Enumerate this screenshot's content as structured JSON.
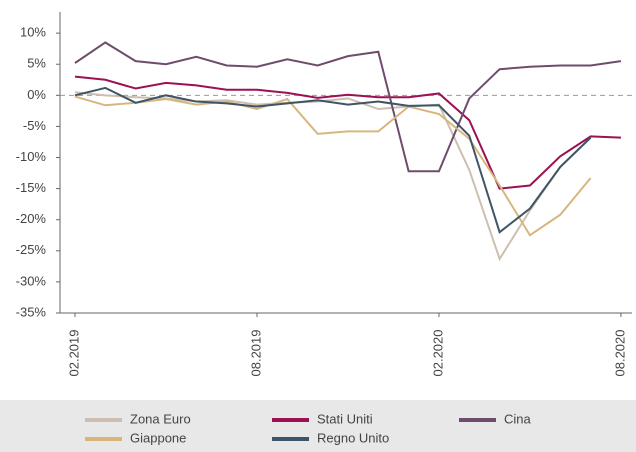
{
  "chart_data": {
    "type": "line",
    "categories": [
      "02.2019",
      null,
      null,
      null,
      null,
      null,
      "08.2019",
      null,
      null,
      null,
      null,
      null,
      "02.2020",
      null,
      null,
      null,
      null,
      null,
      "08.2020"
    ],
    "series": [
      {
        "name": "Zona Euro",
        "color": "#cdbfb0",
        "values": [
          0.5,
          0.0,
          -0.3,
          -0.5,
          -1.0,
          -0.8,
          -1.5,
          -1.2,
          -1.0,
          -0.5,
          -2.2,
          -1.8,
          -1.5,
          -12.0,
          -26.3,
          -18.5,
          -11.5,
          -6.8,
          null
        ]
      },
      {
        "name": "Stati Uniti",
        "color": "#9b1152",
        "values": [
          3.0,
          2.5,
          1.1,
          2.0,
          1.6,
          0.9,
          0.9,
          0.4,
          -0.4,
          0.1,
          -0.3,
          -0.3,
          0.3,
          -4.0,
          -15.0,
          -14.5,
          -9.8,
          -6.6,
          -6.8
        ]
      },
      {
        "name": "Cina",
        "color": "#6e4c6b",
        "values": [
          5.2,
          8.5,
          5.5,
          5.0,
          6.2,
          4.8,
          4.6,
          5.8,
          4.8,
          6.3,
          7.0,
          -12.2,
          -12.2,
          -0.5,
          4.2,
          4.6,
          4.8,
          4.8,
          5.5
        ]
      },
      {
        "name": "Giappone",
        "color": "#d7b67e",
        "values": [
          -0.2,
          -1.6,
          -1.2,
          -0.6,
          -1.5,
          -1.0,
          -2.2,
          -0.6,
          -6.2,
          -5.8,
          -5.8,
          -1.8,
          -3.0,
          -7.0,
          -14.5,
          -22.5,
          -19.2,
          -13.3,
          null
        ]
      },
      {
        "name": "Regno Unito",
        "color": "#3d5566",
        "values": [
          0.0,
          1.2,
          -1.2,
          0.0,
          -1.0,
          -1.3,
          -1.8,
          -1.3,
          -0.8,
          -1.5,
          -1.0,
          -1.7,
          -1.6,
          -6.5,
          -22.0,
          -18.2,
          -11.5,
          -6.8,
          null
        ]
      }
    ],
    "ylim": [
      -35,
      13.4
    ],
    "yticks": [
      {
        "value": 10,
        "label": "10%"
      },
      {
        "value": 5,
        "label": "5%"
      },
      {
        "value": 0,
        "label": "0%"
      },
      {
        "value": -5,
        "label": "-5%"
      },
      {
        "value": -10,
        "label": "-10%"
      },
      {
        "value": -15,
        "label": "-15%"
      },
      {
        "value": -20,
        "label": "-20%"
      },
      {
        "value": -25,
        "label": "-25%"
      },
      {
        "value": -30,
        "label": "-30%"
      },
      {
        "value": -35,
        "label": "-35%"
      }
    ],
    "zero_line": true,
    "grid": false
  }
}
